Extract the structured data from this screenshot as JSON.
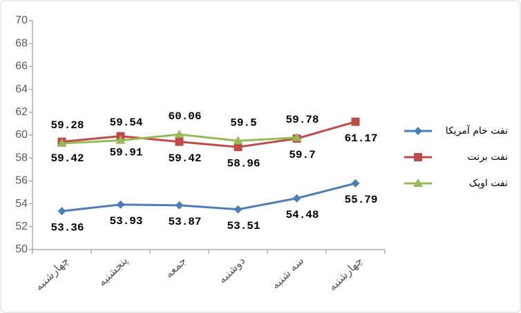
{
  "chart_data": {
    "type": "line",
    "categories": [
      "چهارشنبه",
      "پنجشنبه",
      "جمعه",
      "دوشنبه",
      "سه شنبه",
      "چهارشنبه"
    ],
    "series": [
      {
        "name": "نفت خام آمریکا",
        "color": "#4a7ebb",
        "marker": "diamond",
        "values": [
          53.36,
          53.93,
          53.87,
          53.51,
          54.48,
          55.79
        ]
      },
      {
        "name": "نفت برنت",
        "color": "#be4b48",
        "marker": "square",
        "values": [
          59.42,
          59.91,
          59.42,
          58.96,
          59.7,
          61.17
        ]
      },
      {
        "name": "نفت اوپک",
        "color": "#98b954",
        "marker": "triangle",
        "values": [
          59.28,
          59.54,
          60.06,
          59.5,
          59.78,
          null
        ]
      }
    ],
    "ylim": [
      50,
      70
    ],
    "yticks": [
      50,
      52,
      54,
      56,
      58,
      60,
      62,
      64,
      66,
      68,
      70
    ],
    "grid": false,
    "legend": "right"
  }
}
